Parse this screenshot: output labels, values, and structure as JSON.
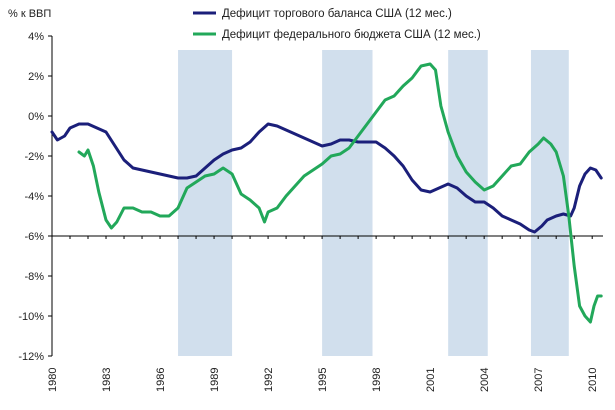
{
  "chart_data": {
    "type": "line",
    "ylabel": "% к ВВП",
    "xlim": [
      1980,
      2010.6
    ],
    "ylim": [
      -12,
      4
    ],
    "xticks": [
      1980,
      1983,
      1986,
      1989,
      1992,
      1995,
      1998,
      2001,
      2004,
      2007,
      2010
    ],
    "yticks": [
      {
        "value": 4,
        "label": "4%"
      },
      {
        "value": 2,
        "label": "2%"
      },
      {
        "value": 0,
        "label": "0%"
      },
      {
        "value": -2,
        "label": "-2%"
      },
      {
        "value": -4,
        "label": "-4%"
      },
      {
        "value": -6,
        "label": "-6%"
      },
      {
        "value": -8,
        "label": "-8%"
      },
      {
        "value": -10,
        "label": "-10%"
      },
      {
        "value": -12,
        "label": "-12%"
      }
    ],
    "recession_bands": [
      [
        1987.0,
        1990.0
      ],
      [
        1995.0,
        1997.8
      ],
      [
        2002.0,
        2004.2
      ],
      [
        2006.6,
        2008.7
      ]
    ],
    "legend_position": "top-center",
    "series": [
      {
        "name": "Дефицит торгового баланса США (12 мес.)",
        "color": "#1b1f7a",
        "points": [
          [
            1980.0,
            -0.8
          ],
          [
            1980.3,
            -1.2
          ],
          [
            1980.7,
            -1.0
          ],
          [
            1981.0,
            -0.6
          ],
          [
            1981.5,
            -0.4
          ],
          [
            1982.0,
            -0.4
          ],
          [
            1982.5,
            -0.6
          ],
          [
            1983.0,
            -0.8
          ],
          [
            1983.5,
            -1.5
          ],
          [
            1984.0,
            -2.2
          ],
          [
            1984.5,
            -2.6
          ],
          [
            1985.0,
            -2.7
          ],
          [
            1985.5,
            -2.8
          ],
          [
            1986.0,
            -2.9
          ],
          [
            1986.5,
            -3.0
          ],
          [
            1987.0,
            -3.1
          ],
          [
            1987.5,
            -3.1
          ],
          [
            1988.0,
            -3.0
          ],
          [
            1988.5,
            -2.6
          ],
          [
            1989.0,
            -2.2
          ],
          [
            1989.5,
            -1.9
          ],
          [
            1990.0,
            -1.7
          ],
          [
            1990.5,
            -1.6
          ],
          [
            1991.0,
            -1.3
          ],
          [
            1991.5,
            -0.8
          ],
          [
            1992.0,
            -0.4
          ],
          [
            1992.5,
            -0.5
          ],
          [
            1993.0,
            -0.7
          ],
          [
            1993.5,
            -0.9
          ],
          [
            1994.0,
            -1.1
          ],
          [
            1994.5,
            -1.3
          ],
          [
            1995.0,
            -1.5
          ],
          [
            1995.5,
            -1.4
          ],
          [
            1996.0,
            -1.2
          ],
          [
            1996.5,
            -1.2
          ],
          [
            1997.0,
            -1.3
          ],
          [
            1997.5,
            -1.3
          ],
          [
            1998.0,
            -1.3
          ],
          [
            1998.5,
            -1.6
          ],
          [
            1999.0,
            -2.0
          ],
          [
            1999.5,
            -2.5
          ],
          [
            2000.0,
            -3.2
          ],
          [
            2000.5,
            -3.7
          ],
          [
            2001.0,
            -3.8
          ],
          [
            2001.5,
            -3.6
          ],
          [
            2002.0,
            -3.4
          ],
          [
            2002.5,
            -3.6
          ],
          [
            2003.0,
            -4.0
          ],
          [
            2003.5,
            -4.3
          ],
          [
            2004.0,
            -4.3
          ],
          [
            2004.5,
            -4.6
          ],
          [
            2005.0,
            -5.0
          ],
          [
            2005.5,
            -5.2
          ],
          [
            2006.0,
            -5.4
          ],
          [
            2006.5,
            -5.7
          ],
          [
            2006.8,
            -5.8
          ],
          [
            2007.2,
            -5.5
          ],
          [
            2007.5,
            -5.2
          ],
          [
            2008.0,
            -5.0
          ],
          [
            2008.4,
            -4.9
          ],
          [
            2008.8,
            -5.0
          ],
          [
            2009.0,
            -4.6
          ],
          [
            2009.3,
            -3.5
          ],
          [
            2009.6,
            -2.9
          ],
          [
            2009.9,
            -2.6
          ],
          [
            2010.2,
            -2.7
          ],
          [
            2010.5,
            -3.1
          ]
        ]
      },
      {
        "name": "Дефицит федерального бюджета США (12 мес.)",
        "color": "#22a85a",
        "points": [
          [
            1981.5,
            -1.8
          ],
          [
            1981.8,
            -2.0
          ],
          [
            1982.0,
            -1.7
          ],
          [
            1982.3,
            -2.5
          ],
          [
            1982.6,
            -3.8
          ],
          [
            1983.0,
            -5.2
          ],
          [
            1983.3,
            -5.6
          ],
          [
            1983.6,
            -5.3
          ],
          [
            1984.0,
            -4.6
          ],
          [
            1984.5,
            -4.6
          ],
          [
            1985.0,
            -4.8
          ],
          [
            1985.5,
            -4.8
          ],
          [
            1986.0,
            -5.0
          ],
          [
            1986.5,
            -5.0
          ],
          [
            1987.0,
            -4.6
          ],
          [
            1987.5,
            -3.6
          ],
          [
            1988.0,
            -3.3
          ],
          [
            1988.5,
            -3.0
          ],
          [
            1989.0,
            -2.9
          ],
          [
            1989.5,
            -2.6
          ],
          [
            1990.0,
            -2.9
          ],
          [
            1990.5,
            -3.9
          ],
          [
            1991.0,
            -4.2
          ],
          [
            1991.5,
            -4.6
          ],
          [
            1991.8,
            -5.3
          ],
          [
            1992.0,
            -4.8
          ],
          [
            1992.5,
            -4.6
          ],
          [
            1993.0,
            -4.0
          ],
          [
            1993.5,
            -3.5
          ],
          [
            1994.0,
            -3.0
          ],
          [
            1994.5,
            -2.7
          ],
          [
            1995.0,
            -2.4
          ],
          [
            1995.5,
            -2.0
          ],
          [
            1996.0,
            -1.9
          ],
          [
            1996.5,
            -1.6
          ],
          [
            1997.0,
            -1.0
          ],
          [
            1997.5,
            -0.4
          ],
          [
            1998.0,
            0.2
          ],
          [
            1998.5,
            0.8
          ],
          [
            1999.0,
            1.0
          ],
          [
            1999.5,
            1.5
          ],
          [
            2000.0,
            1.9
          ],
          [
            2000.5,
            2.5
          ],
          [
            2001.0,
            2.6
          ],
          [
            2001.3,
            2.3
          ],
          [
            2001.6,
            0.5
          ],
          [
            2002.0,
            -0.8
          ],
          [
            2002.5,
            -2.0
          ],
          [
            2003.0,
            -2.8
          ],
          [
            2003.5,
            -3.3
          ],
          [
            2004.0,
            -3.7
          ],
          [
            2004.5,
            -3.5
          ],
          [
            2005.0,
            -3.0
          ],
          [
            2005.5,
            -2.5
          ],
          [
            2006.0,
            -2.4
          ],
          [
            2006.5,
            -1.8
          ],
          [
            2007.0,
            -1.4
          ],
          [
            2007.3,
            -1.1
          ],
          [
            2007.7,
            -1.4
          ],
          [
            2008.0,
            -1.8
          ],
          [
            2008.4,
            -3.0
          ],
          [
            2008.7,
            -5.0
          ],
          [
            2009.0,
            -7.5
          ],
          [
            2009.3,
            -9.5
          ],
          [
            2009.6,
            -10.0
          ],
          [
            2009.9,
            -10.3
          ],
          [
            2010.1,
            -9.5
          ],
          [
            2010.3,
            -9.0
          ],
          [
            2010.5,
            -9.0
          ]
        ]
      }
    ]
  }
}
